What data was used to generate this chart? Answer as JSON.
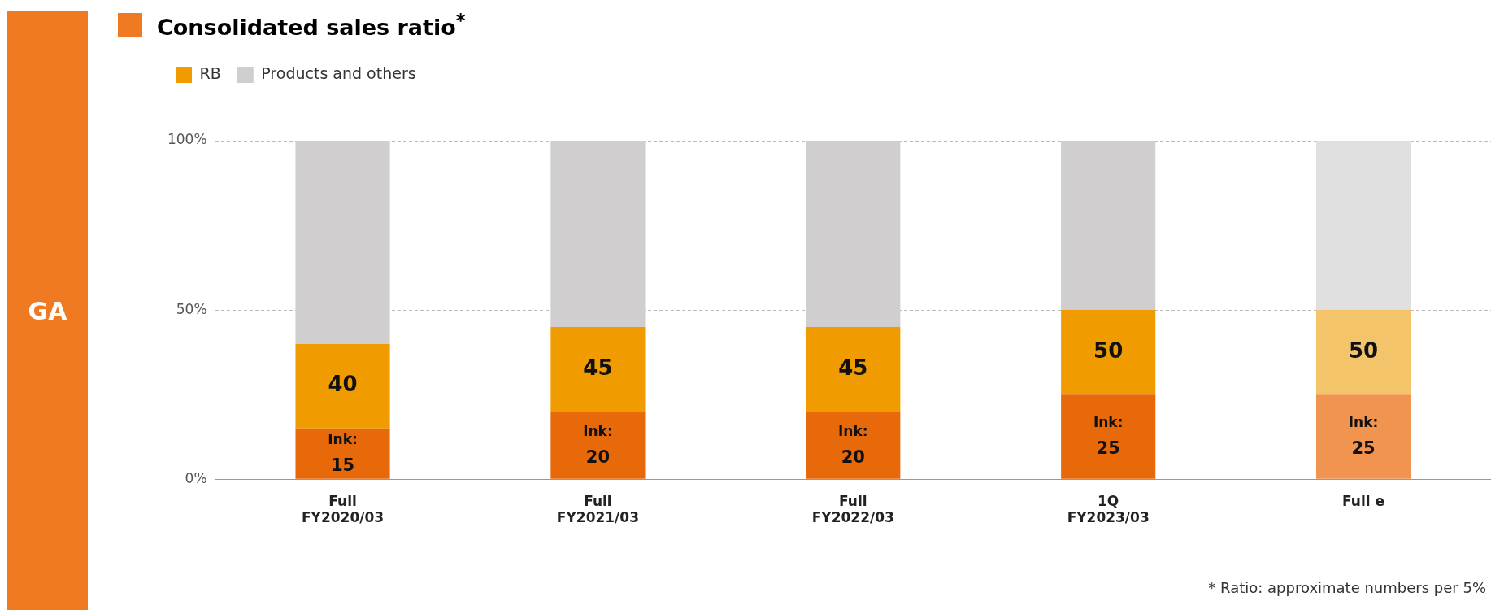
{
  "chart_data": {
    "type": "bar",
    "title": "Consolidated sales ratio$^{*}$",
    "stacked": true,
    "categories": [
      "Full\nFY2020/03",
      "Full\nFY2021/03",
      "Full\nFY2022/03",
      "1Q\nFY2023/03",
      "Full e"
    ],
    "series": [
      {
        "color": "#e8690a",
        "colors": [
          "#e8690a",
          "#e8690a",
          "#e8690a",
          "#e8690a",
          "#f0944f"
        ],
        "values": [
          15,
          20,
          20,
          25,
          25
        ],
        "value_labels": [
          "Ink:\n15",
          "Ink:\n20",
          "Ink:\n20",
          "Ink:\n25",
          "Ink:\n25"
        ]
      },
      {
        "name": "RB",
        "color": "#f09c00",
        "colors": [
          "#f09c00",
          "#f09c00",
          "#f09c00",
          "#f09c00",
          "#f4c46a"
        ],
        "values": [
          25,
          25,
          25,
          25,
          25
        ]
      },
      {
        "name": "Products and others",
        "color": "#d0cecf",
        "colors": [
          "#d0cecf",
          "#d0cecf",
          "#d0cecf",
          "#d0cecf",
          "#e0e0e0"
        ],
        "values": [
          60,
          55,
          55,
          50,
          50
        ]
      }
    ],
    "ylim": [
      0,
      100
    ],
    "yticks": [
      {
        "value": 0,
        "label": "0%"
      },
      {
        "value": 50,
        "label": "50%"
      },
      {
        "value": 100,
        "label": "100%"
      }
    ],
    "grid": "y",
    "legend": "top left",
    "annotations": [
      "GA",
      "* Ratio: approximate numbers per 5%",
      "40",
      "45",
      "45",
      "50",
      "50"
    ]
  }
}
